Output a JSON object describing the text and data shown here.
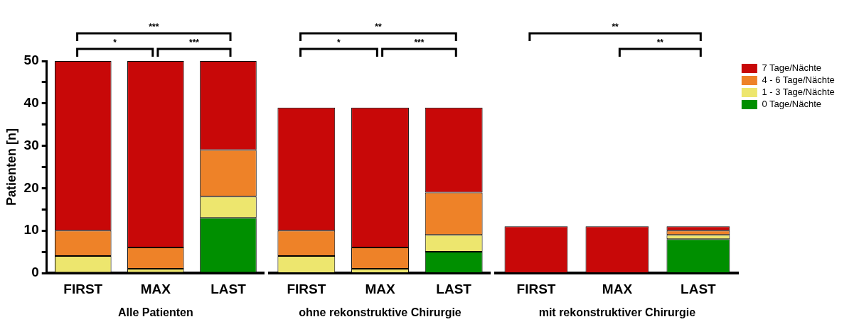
{
  "chart_data": [
    {
      "type": "bar",
      "stacked": true,
      "xlabel": "Alle Patienten",
      "ylabel": "Patienten [n]",
      "categories": [
        "FIRST",
        "MAX",
        "LAST"
      ],
      "ylim": [
        0,
        50
      ],
      "yticks": [
        0,
        {
          "value": 5,
          "label": null
        },
        10,
        {
          "value": 15,
          "label": null
        },
        20,
        {
          "value": 25,
          "label": null
        },
        30,
        {
          "value": 35,
          "label": null
        },
        40,
        {
          "value": 45,
          "label": null
        },
        50
      ],
      "series": [
        {
          "color": "#008f00",
          "values": [
            0,
            0,
            13
          ]
        },
        {
          "color": "#ede66e",
          "values": [
            4,
            1,
            5
          ]
        },
        {
          "color": "#ee8228",
          "values": [
            6,
            5,
            11
          ]
        },
        {
          "color": "#c80808",
          "values": [
            40,
            44,
            21
          ]
        }
      ],
      "annotations": [
        "***",
        "*",
        "***"
      ]
    },
    {
      "type": "bar",
      "stacked": true,
      "xlabel": "ohne rekonstruktive Chirurgie",
      "categories": [
        "FIRST",
        "MAX",
        "LAST"
      ],
      "ylim": [
        0,
        50
      ],
      "tick_labels": "x",
      "series": [
        {
          "color": "#008f00",
          "values": [
            0,
            0,
            5
          ]
        },
        {
          "color": "#ede66e",
          "values": [
            4,
            1,
            4
          ]
        },
        {
          "color": "#ee8228",
          "values": [
            6,
            5,
            10
          ]
        },
        {
          "color": "#c80808",
          "values": [
            29,
            33,
            20
          ]
        }
      ],
      "annotations": [
        "**",
        "*",
        "***"
      ]
    },
    {
      "type": "bar",
      "stacked": true,
      "xlabel": "mit rekonstruktiver Chirurgie",
      "categories": [
        "FIRST",
        "MAX",
        "LAST"
      ],
      "ylim": [
        0,
        50
      ],
      "tick_labels": "x",
      "legend": "right",
      "series": [
        {
          "name": "0 Tage/Nächte",
          "color": "#008f00",
          "values": [
            0,
            0,
            8
          ]
        },
        {
          "name": "1 - 3 Tage/Nächte",
          "color": "#ede66e",
          "values": [
            0,
            0,
            1
          ]
        },
        {
          "name": "4 - 6 Tage/Nächte",
          "color": "#ee8228",
          "values": [
            0,
            0,
            1
          ]
        },
        {
          "name": "7 Tage/Nächte",
          "color": "#c80808",
          "values": [
            11,
            11,
            1
          ]
        }
      ],
      "annotations": [
        "**",
        "**"
      ]
    }
  ]
}
